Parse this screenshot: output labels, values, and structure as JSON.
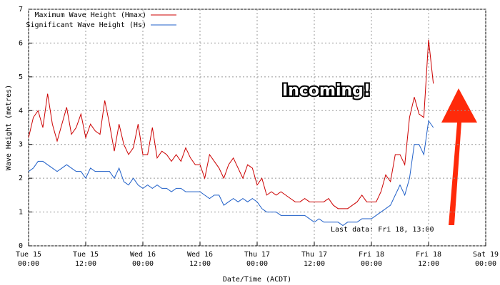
{
  "chart_data": {
    "type": "line",
    "xlabel": "Date/Time (ACDT)",
    "ylabel": "Wave Height (metres)",
    "x": [
      0,
      1,
      2,
      3,
      4,
      5,
      6,
      7,
      8,
      9,
      10,
      11,
      12,
      13,
      14,
      15,
      16,
      17,
      18,
      19,
      20,
      21,
      22,
      23,
      24,
      25,
      26,
      27,
      28,
      29,
      30,
      31,
      32,
      33,
      34,
      35,
      36,
      37,
      38,
      39,
      40,
      41,
      42,
      43,
      44,
      45,
      46,
      47,
      48,
      49,
      50,
      51,
      52,
      53,
      54,
      55,
      56,
      57,
      58,
      59,
      60,
      61,
      62,
      63,
      64,
      65,
      66,
      67,
      68,
      69,
      70,
      71,
      72,
      73,
      74,
      75,
      76,
      77,
      78,
      79,
      80,
      81,
      82,
      83,
      84,
      85
    ],
    "series": [
      {
        "name": "Maximum Wave Height (Hmax)",
        "color": "#cc0000",
        "values": [
          3.2,
          3.8,
          4.0,
          3.5,
          4.5,
          3.6,
          3.1,
          3.6,
          4.1,
          3.3,
          3.5,
          3.9,
          3.2,
          3.6,
          3.4,
          3.3,
          4.3,
          3.6,
          2.8,
          3.6,
          3.0,
          2.7,
          2.9,
          3.6,
          2.7,
          2.7,
          3.5,
          2.6,
          2.8,
          2.7,
          2.5,
          2.7,
          2.5,
          2.9,
          2.6,
          2.4,
          2.4,
          2.0,
          2.7,
          2.5,
          2.3,
          2.0,
          2.4,
          2.6,
          2.3,
          2.0,
          2.4,
          2.3,
          1.8,
          2.0,
          1.5,
          1.6,
          1.5,
          1.6,
          1.5,
          1.4,
          1.3,
          1.3,
          1.4,
          1.3,
          1.3,
          1.3,
          1.3,
          1.4,
          1.2,
          1.1,
          1.1,
          1.1,
          1.2,
          1.3,
          1.5,
          1.3,
          1.3,
          1.3,
          1.6,
          2.1,
          1.9,
          2.7,
          2.7,
          2.4,
          3.8,
          4.4,
          3.9,
          3.8,
          6.1,
          4.8
        ]
      },
      {
        "name": "Significant Wave Height (Hs)",
        "color": "#1f5fc8",
        "values": [
          2.2,
          2.3,
          2.5,
          2.5,
          2.4,
          2.3,
          2.2,
          2.3,
          2.4,
          2.3,
          2.2,
          2.2,
          2.0,
          2.3,
          2.2,
          2.2,
          2.2,
          2.2,
          2.0,
          2.3,
          1.9,
          1.8,
          2.0,
          1.8,
          1.7,
          1.8,
          1.7,
          1.8,
          1.7,
          1.7,
          1.6,
          1.7,
          1.7,
          1.6,
          1.6,
          1.6,
          1.6,
          1.5,
          1.4,
          1.5,
          1.5,
          1.2,
          1.3,
          1.4,
          1.3,
          1.4,
          1.3,
          1.4,
          1.3,
          1.1,
          1.0,
          1.0,
          1.0,
          0.9,
          0.9,
          0.9,
          0.9,
          0.9,
          0.9,
          0.8,
          0.7,
          0.8,
          0.7,
          0.7,
          0.7,
          0.7,
          0.6,
          0.7,
          0.7,
          0.7,
          0.8,
          0.8,
          0.8,
          0.9,
          1.0,
          1.1,
          1.2,
          1.5,
          1.8,
          1.5,
          2.0,
          3.0,
          3.0,
          2.7,
          3.7,
          3.5
        ]
      }
    ],
    "xlim": [
      0,
      96
    ],
    "xticks": [
      {
        "value": 0,
        "label": "Tue 15\n00:00"
      },
      {
        "value": 12,
        "label": "Tue 15\n12:00"
      },
      {
        "value": 24,
        "label": "Wed 16\n00:00"
      },
      {
        "value": 36,
        "label": "Wed 16\n12:00"
      },
      {
        "value": 48,
        "label": "Thu 17\n00:00"
      },
      {
        "value": 60,
        "label": "Thu 17\n12:00"
      },
      {
        "value": 72,
        "label": "Fri 18\n00:00"
      },
      {
        "value": 84,
        "label": "Fri 18\n12:00"
      },
      {
        "value": 96,
        "label": "Sat 19\n00:00"
      }
    ],
    "ylim": [
      0,
      7
    ],
    "yticks": [
      0,
      1,
      2,
      3,
      4,
      5,
      6,
      7
    ],
    "grid": true,
    "legend": "upper left",
    "annotations": [
      "Incoming!",
      "Last data: Fri 18, 13:00"
    ]
  }
}
